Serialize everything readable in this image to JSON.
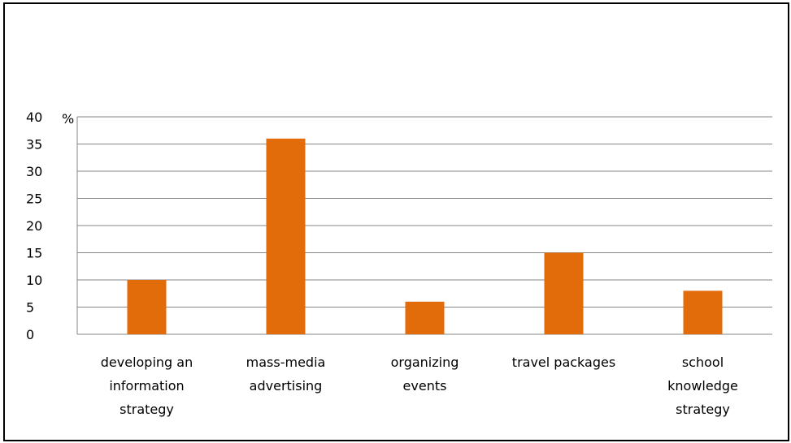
{
  "chart_data": {
    "type": "bar",
    "unit_label": "%",
    "categories": [
      [
        "developing an",
        "information",
        "strategy"
      ],
      [
        "mass-media",
        "advertising"
      ],
      [
        "organizing",
        "events"
      ],
      [
        "travel packages"
      ],
      [
        "school",
        "knowledge",
        "strategy"
      ]
    ],
    "series": [
      {
        "values": [
          10,
          36,
          6,
          15,
          8
        ]
      }
    ],
    "ylim": [
      0,
      40
    ],
    "yticks": [
      0,
      5,
      10,
      15,
      20,
      25,
      30,
      35,
      40
    ],
    "grid": true,
    "bar_color": "#e36c0a",
    "grid_color": "#868686"
  }
}
